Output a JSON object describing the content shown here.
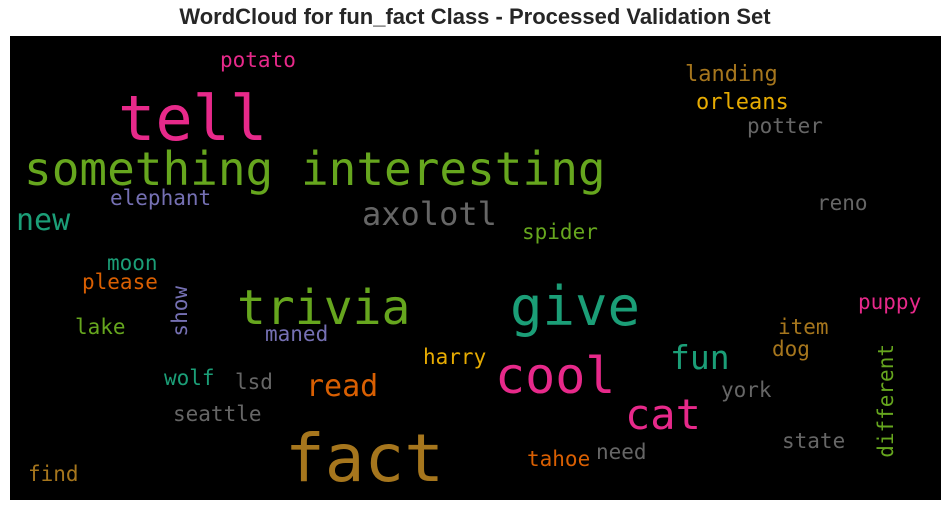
{
  "chart_data": {
    "type": "wordcloud",
    "title": "WordCloud for fun_fact Class - Processed Validation Set",
    "background": "#000000",
    "words": [
      {
        "text": "fact",
        "color": "#a6761d",
        "orientation": "horizontal"
      },
      {
        "text": "tell",
        "color": "#e7298a",
        "orientation": "horizontal"
      },
      {
        "text": "something interesting",
        "color": "#66a61e",
        "orientation": "horizontal"
      },
      {
        "text": "give",
        "color": "#1b9e77",
        "orientation": "horizontal"
      },
      {
        "text": "trivia",
        "color": "#66a61e",
        "orientation": "horizontal"
      },
      {
        "text": "cool",
        "color": "#e7298a",
        "orientation": "horizontal"
      },
      {
        "text": "cat",
        "color": "#e7298a",
        "orientation": "horizontal"
      },
      {
        "text": "axolotl",
        "color": "#666666",
        "orientation": "horizontal"
      },
      {
        "text": "fun",
        "color": "#1b9e77",
        "orientation": "horizontal"
      },
      {
        "text": "new",
        "color": "#1b9e77",
        "orientation": "horizontal"
      },
      {
        "text": "read",
        "color": "#d95f02",
        "orientation": "horizontal"
      },
      {
        "text": "potato",
        "color": "#e7298a",
        "orientation": "horizontal"
      },
      {
        "text": "landing",
        "color": "#a6761d",
        "orientation": "horizontal"
      },
      {
        "text": "orleans",
        "color": "#e6ab02",
        "orientation": "horizontal"
      },
      {
        "text": "potter",
        "color": "#666666",
        "orientation": "horizontal"
      },
      {
        "text": "elephant",
        "color": "#7570b3",
        "orientation": "horizontal"
      },
      {
        "text": "reno",
        "color": "#666666",
        "orientation": "horizontal"
      },
      {
        "text": "spider",
        "color": "#66a61e",
        "orientation": "horizontal"
      },
      {
        "text": "moon",
        "color": "#1b9e77",
        "orientation": "horizontal"
      },
      {
        "text": "please",
        "color": "#d95f02",
        "orientation": "horizontal"
      },
      {
        "text": "show",
        "color": "#7570b3",
        "orientation": "vertical"
      },
      {
        "text": "lake",
        "color": "#66a61e",
        "orientation": "horizontal"
      },
      {
        "text": "maned",
        "color": "#7570b3",
        "orientation": "horizontal"
      },
      {
        "text": "puppy",
        "color": "#e7298a",
        "orientation": "horizontal"
      },
      {
        "text": "item",
        "color": "#a6761d",
        "orientation": "horizontal"
      },
      {
        "text": "dog",
        "color": "#a6761d",
        "orientation": "horizontal"
      },
      {
        "text": "harry",
        "color": "#e6ab02",
        "orientation": "horizontal"
      },
      {
        "text": "different",
        "color": "#66a61e",
        "orientation": "vertical"
      },
      {
        "text": "wolf",
        "color": "#1b9e77",
        "orientation": "horizontal"
      },
      {
        "text": "lsd",
        "color": "#666666",
        "orientation": "horizontal"
      },
      {
        "text": "york",
        "color": "#666666",
        "orientation": "horizontal"
      },
      {
        "text": "seattle",
        "color": "#666666",
        "orientation": "horizontal"
      },
      {
        "text": "state",
        "color": "#666666",
        "orientation": "horizontal"
      },
      {
        "text": "find",
        "color": "#a6761d",
        "orientation": "horizontal"
      },
      {
        "text": "tahoe",
        "color": "#d95f02",
        "orientation": "horizontal"
      },
      {
        "text": "need",
        "color": "#666666",
        "orientation": "horizontal"
      }
    ]
  }
}
